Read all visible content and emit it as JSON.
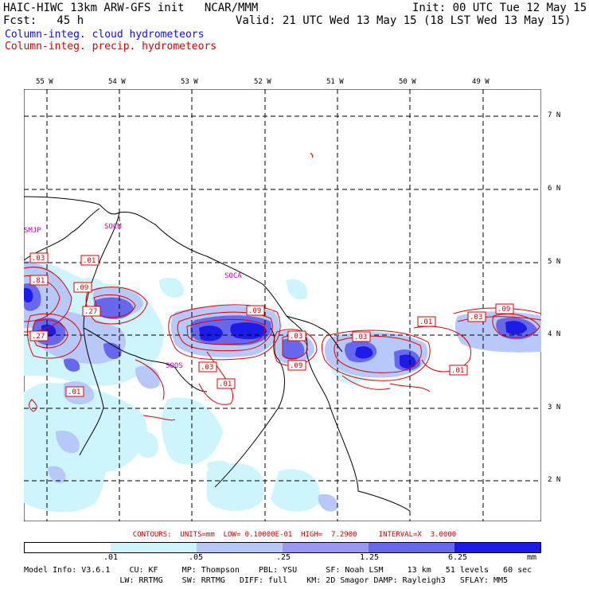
{
  "header": {
    "title_left": "HAIC-HIWC 13km ARW-GFS init   NCAR/MMM",
    "fcst": "Fcst:   45 h",
    "init": "Init: 00 UTC Tue 12 May 15",
    "valid": "Valid: 21 UTC Wed 13 May 15 (18 LST Wed 13 May 15)"
  },
  "legend": {
    "cloud": "Column-integ. cloud hydrometeors",
    "precip": "Column-integ. precip. hydrometeors",
    "cloud_color": "#1010e0",
    "precip_color": "#e00000"
  },
  "map": {
    "lon_labels": [
      "55 W",
      "54 W",
      "53 W",
      "52 W",
      "51 W",
      "50 W",
      "49 W"
    ],
    "lat_labels": [
      "7 N",
      "6 N",
      "5 N",
      "4 N",
      "3 N",
      "2 N"
    ],
    "stations": [
      "SMJP",
      "SOCM",
      "SOCA",
      "SOOS"
    ],
    "contour_labels": [
      ".03",
      ".01",
      ".81",
      ".09",
      ".27",
      ".27",
      ".01",
      ".09",
      ".03",
      ".01",
      ".03",
      ".09",
      ".03",
      ".01",
      ".03",
      ".09",
      ".01"
    ]
  },
  "colorbar": {
    "ticks": [
      ".01",
      ".05",
      ".25",
      "1.25",
      "6.25",
      "mm"
    ],
    "colors": [
      "#ffffff",
      "#cdf5fb",
      "#b8c8f8",
      "#9a98f0",
      "#6868ee",
      "#1c1ce8"
    ]
  },
  "contours_line": "CONTOURS:  UNITS=mm  LOW= 0.10000E-01  HIGH=  7.2900     INTERVAL=X  3.0000",
  "model_info": {
    "line1": "Model Info: V3.6.1    CU: KF     MP: Thompson    PBL: YSU      SF: Noah LSM     13 km   51 levels   60 sec",
    "line2": "                    LW: RRTMG    SW: RRTMG   DIFF: full    KM: 2D Smagor DAMP: Rayleigh3   SFLAY: MM5"
  }
}
